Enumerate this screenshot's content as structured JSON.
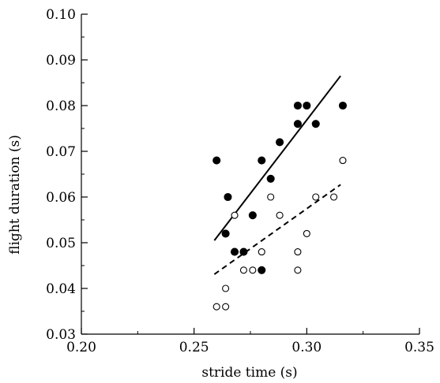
{
  "chart_data": {
    "type": "scatter",
    "title": "",
    "xlabel": "stride time (s)",
    "ylabel": "flight duration (s)",
    "xlim": [
      0.2,
      0.35
    ],
    "ylim": [
      0.03,
      0.1
    ],
    "x_ticks": [
      "0.20",
      "0.25",
      "0.30",
      "0.35"
    ],
    "y_ticks": [
      "0.03",
      "0.04",
      "0.05",
      "0.06",
      "0.07",
      "0.08",
      "0.09",
      "0.10"
    ],
    "grid": false,
    "legend": "none",
    "series": [
      {
        "marker": "filled-circle",
        "color": "#000000",
        "points": [
          [
            0.26,
            0.068
          ],
          [
            0.264,
            0.052
          ],
          [
            0.265,
            0.06
          ],
          [
            0.268,
            0.048
          ],
          [
            0.272,
            0.048
          ],
          [
            0.276,
            0.056
          ],
          [
            0.28,
            0.068
          ],
          [
            0.28,
            0.044
          ],
          [
            0.284,
            0.064
          ],
          [
            0.288,
            0.072
          ],
          [
            0.296,
            0.076
          ],
          [
            0.296,
            0.08
          ],
          [
            0.3,
            0.08
          ],
          [
            0.304,
            0.076
          ],
          [
            0.316,
            0.08
          ]
        ],
        "fit": {
          "style": "solid",
          "from": [
            0.259,
            0.0505
          ],
          "to": [
            0.315,
            0.0865
          ]
        }
      },
      {
        "marker": "open-circle",
        "color": "#000000",
        "points": [
          [
            0.26,
            0.036
          ],
          [
            0.264,
            0.036
          ],
          [
            0.264,
            0.04
          ],
          [
            0.268,
            0.056
          ],
          [
            0.272,
            0.044
          ],
          [
            0.276,
            0.044
          ],
          [
            0.28,
            0.048
          ],
          [
            0.284,
            0.06
          ],
          [
            0.288,
            0.056
          ],
          [
            0.296,
            0.048
          ],
          [
            0.296,
            0.044
          ],
          [
            0.3,
            0.052
          ],
          [
            0.304,
            0.06
          ],
          [
            0.312,
            0.06
          ],
          [
            0.316,
            0.068
          ]
        ],
        "fit": {
          "style": "dashed",
          "from": [
            0.259,
            0.0431
          ],
          "to": [
            0.315,
            0.0627
          ]
        }
      }
    ]
  }
}
